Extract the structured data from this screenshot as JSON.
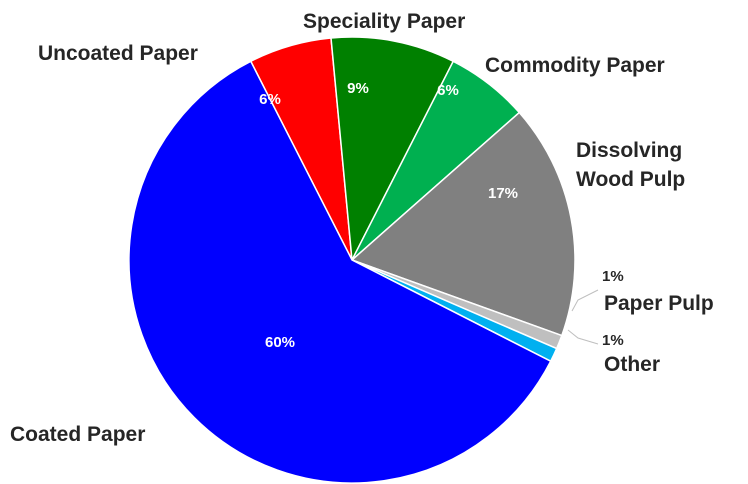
{
  "chart_data": {
    "type": "pie",
    "slices": [
      {
        "label": "Coated Paper",
        "value": 60,
        "pct_label": "60%",
        "color": "#0000FF"
      },
      {
        "label": "Uncoated Paper",
        "value": 6,
        "pct_label": "6%",
        "color": "#FF0000"
      },
      {
        "label": "Speciality Paper",
        "value": 9,
        "pct_label": "9%",
        "color": "#008000"
      },
      {
        "label": "Commodity Paper",
        "value": 6,
        "pct_label": "6%",
        "color": "#00B050"
      },
      {
        "label": "Dissolving Wood Pulp",
        "value": 17,
        "pct_label": "17%",
        "color": "#808080"
      },
      {
        "label": "Paper Pulp",
        "value": 1,
        "pct_label": "1%",
        "color": "#BFBFBF"
      },
      {
        "label": "Other",
        "value": 1,
        "pct_label": "1%",
        "color": "#00B0F0"
      }
    ]
  }
}
